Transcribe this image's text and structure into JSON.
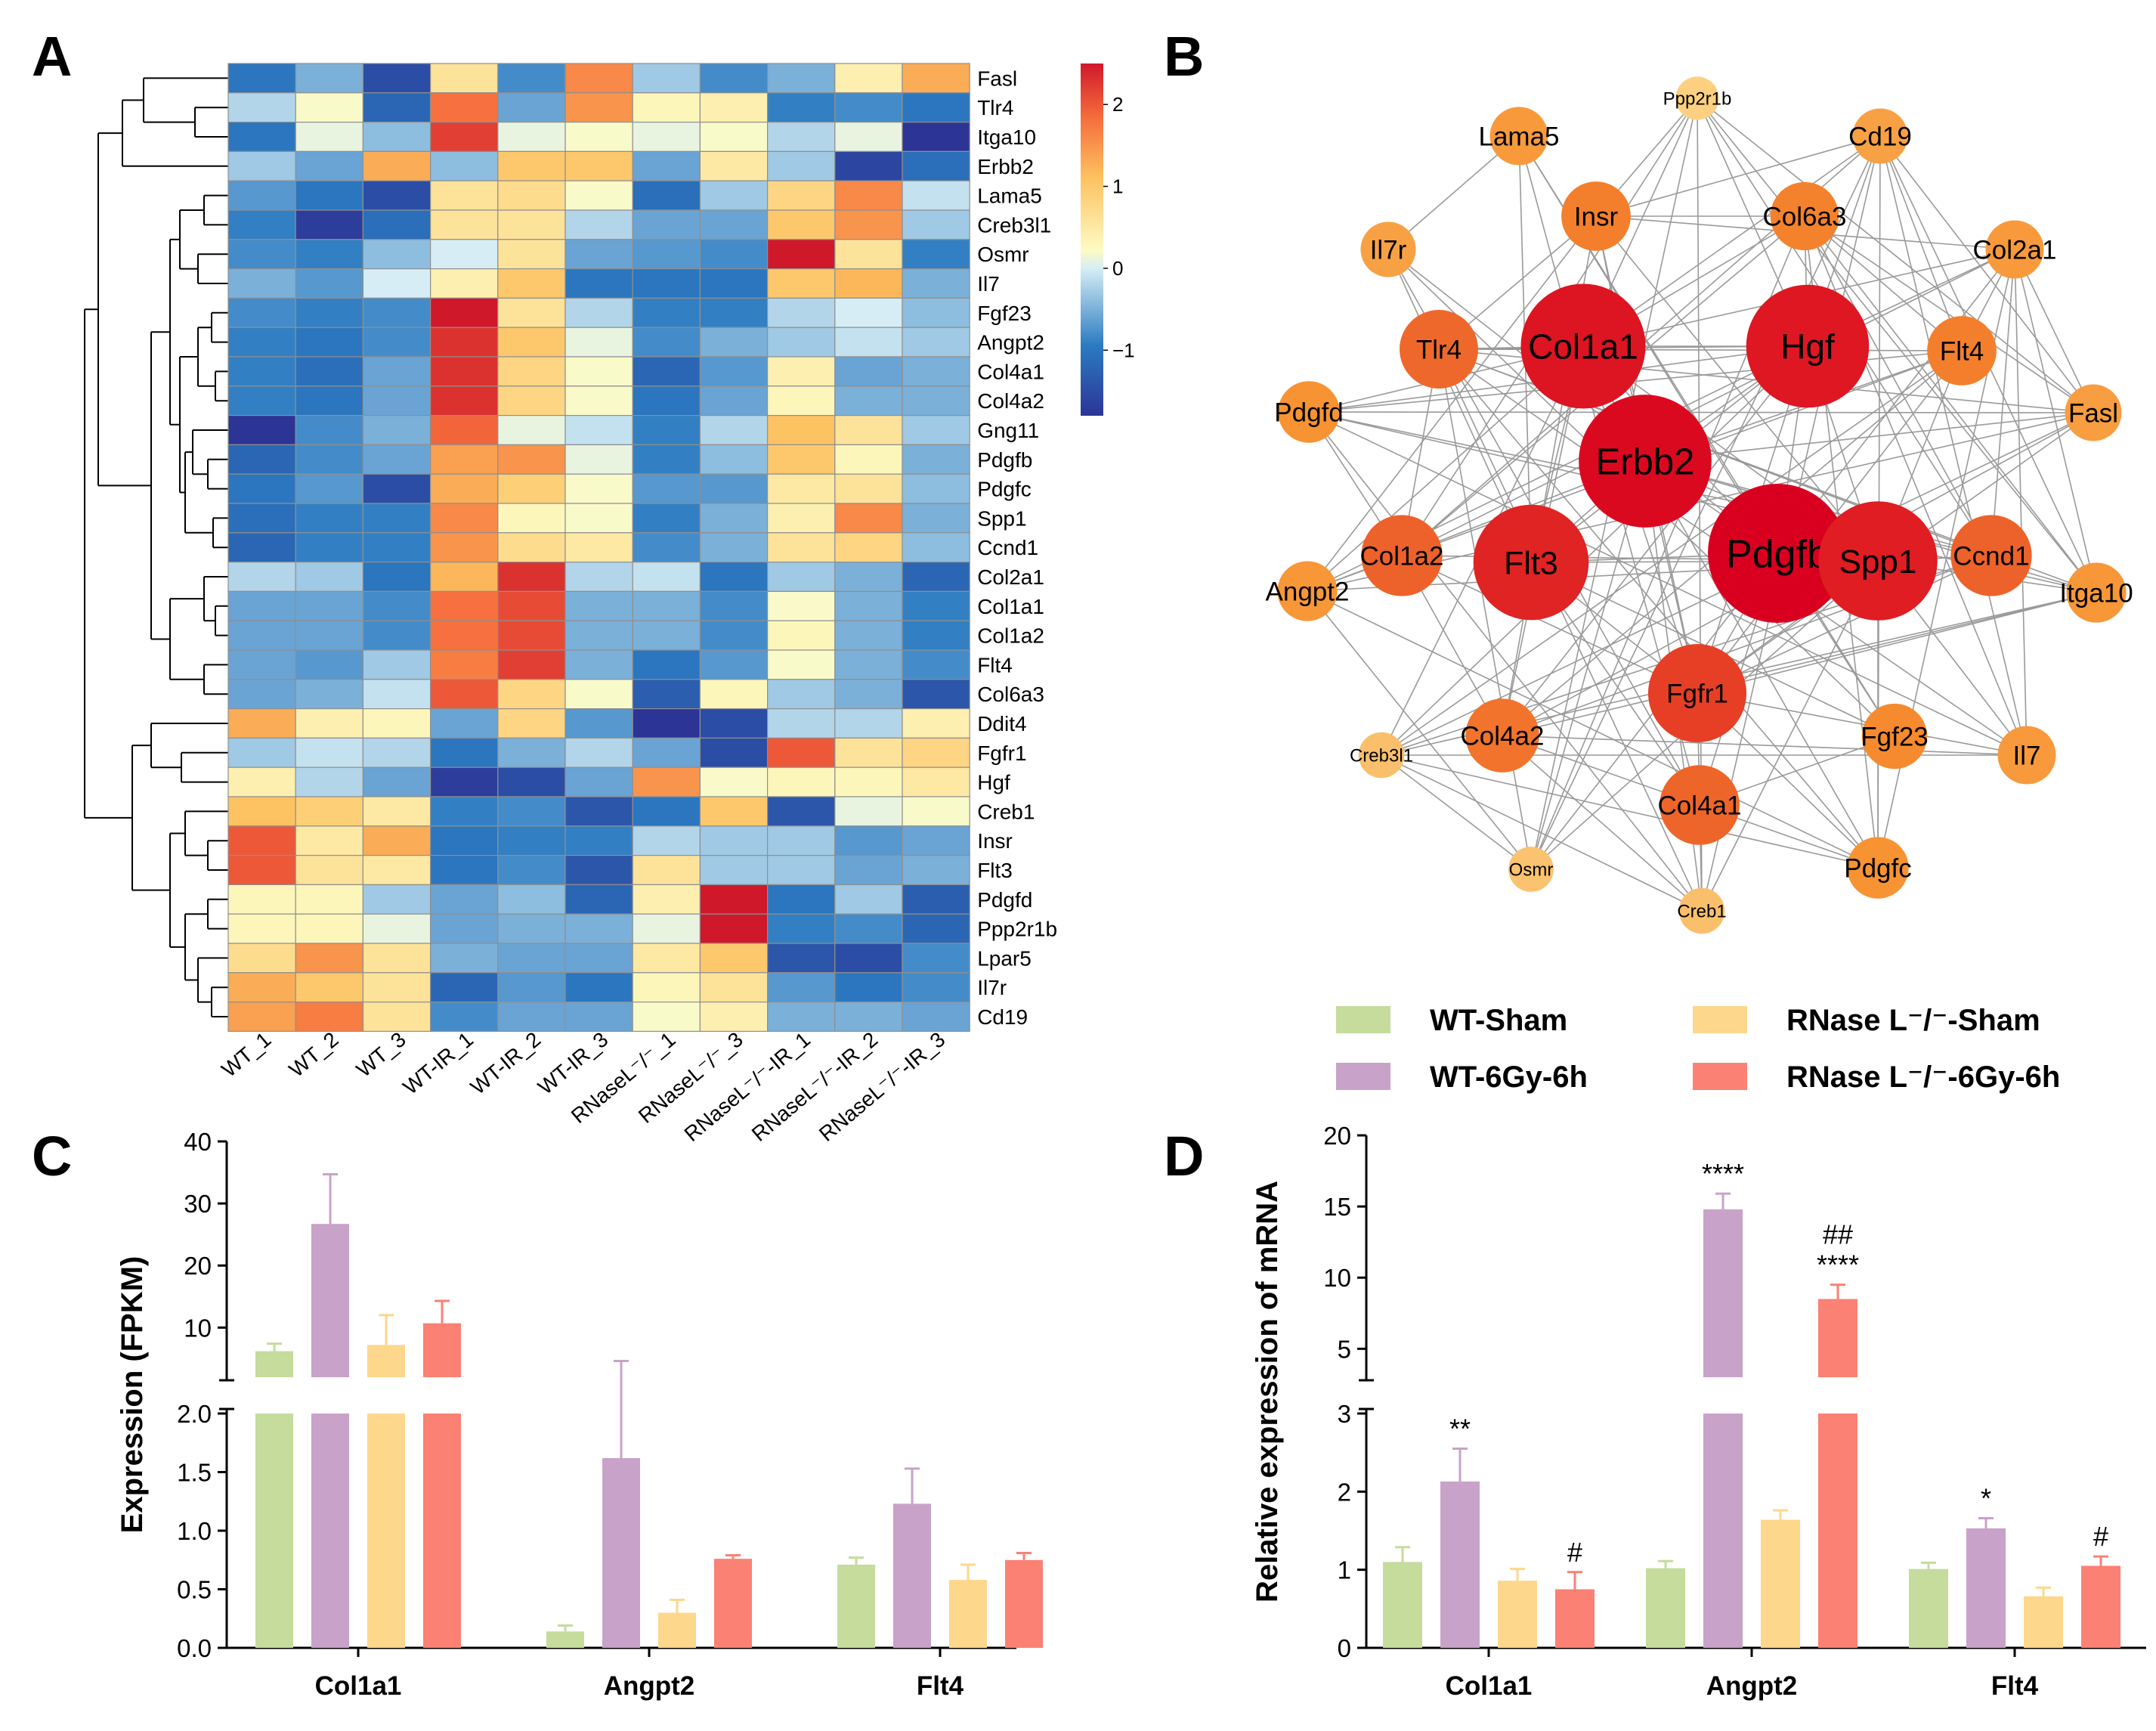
{
  "panels": {
    "A": "A",
    "B": "B",
    "C": "C",
    "D": "D"
  },
  "heatmap": {
    "genes": [
      "Fasl",
      "Tlr4",
      "Itga10",
      "Erbb2",
      "Lama5",
      "Creb3l1",
      "Osmr",
      "Il7",
      "Fgf23",
      "Angpt2",
      "Col4a1",
      "Col4a2",
      "Gng11",
      "Pdgfb",
      "Pdgfc",
      "Spp1",
      "Ccnd1",
      "Col2a1",
      "Col1a1",
      "Col1a2",
      "Flt4",
      "Col6a3",
      "Ddit4",
      "Fgfr1",
      "Hgf",
      "Creb1",
      "Insr",
      "Flt3",
      "Pdgfd",
      "Ppp2r1b",
      "Lpar5",
      "Il7r",
      "Cd19"
    ],
    "samples": [
      "WT_1",
      "WT_2",
      "WT_3",
      "WT-IR_1",
      "WT-IR_2",
      "WT-IR_3",
      "RNaseL⁻/⁻_1",
      "RNaseL⁻/⁻_3",
      "RNaseL⁻/⁻-IR_1",
      "RNaseL⁻/⁻-IR_2",
      "RNaseL⁻/⁻-IR_3"
    ],
    "values": [
      [
        -1.0,
        -0.5,
        -1.5,
        0.6,
        -0.8,
        1.6,
        -0.3,
        -0.8,
        -0.5,
        0.4,
        1.3
      ],
      [
        -0.2,
        0.2,
        -1.2,
        1.8,
        -0.6,
        1.5,
        0.3,
        0.4,
        -0.9,
        -0.8,
        -1.0
      ],
      [
        -1.0,
        0.1,
        -0.4,
        2.2,
        0.1,
        0.2,
        0.1,
        0.2,
        -0.2,
        0.1,
        -1.8
      ],
      [
        -0.3,
        -0.6,
        1.3,
        -0.4,
        1.0,
        1.0,
        -0.6,
        0.5,
        -0.3,
        -1.6,
        -1.1
      ],
      [
        -0.7,
        -1.0,
        -1.5,
        0.6,
        0.7,
        0.2,
        -1.1,
        -0.3,
        0.8,
        1.6,
        -0.1
      ],
      [
        -0.9,
        -1.7,
        -1.1,
        0.6,
        0.6,
        -0.2,
        -0.6,
        -0.6,
        1.0,
        1.5,
        -0.3
      ],
      [
        -0.8,
        -0.9,
        -0.4,
        0.0,
        0.6,
        -0.6,
        -0.7,
        -0.8,
        2.5,
        0.6,
        -0.9
      ],
      [
        -0.5,
        -0.7,
        0.0,
        0.4,
        1.0,
        -1.0,
        -1.0,
        -1.0,
        1.0,
        1.2,
        -0.5
      ],
      [
        -0.8,
        -0.9,
        -0.8,
        2.5,
        0.6,
        -0.2,
        -0.9,
        -0.9,
        -0.2,
        0.0,
        -0.4
      ],
      [
        -0.9,
        -1.0,
        -0.8,
        2.3,
        1.0,
        0.1,
        -0.8,
        -0.5,
        -0.3,
        -0.1,
        -0.3
      ],
      [
        -0.9,
        -1.1,
        -0.6,
        2.3,
        0.8,
        0.2,
        -1.2,
        -0.7,
        0.4,
        -0.6,
        -0.5
      ],
      [
        -0.9,
        -1.0,
        -0.6,
        2.3,
        0.8,
        0.2,
        -1.0,
        -0.6,
        0.3,
        -0.5,
        -0.5
      ],
      [
        -1.8,
        -0.8,
        -0.5,
        1.9,
        0.1,
        -0.1,
        -0.9,
        -0.2,
        1.1,
        0.6,
        -0.3
      ],
      [
        -1.2,
        -0.8,
        -0.6,
        1.4,
        1.5,
        0.1,
        -0.9,
        -0.4,
        1.0,
        0.3,
        -0.5
      ],
      [
        -1.0,
        -0.7,
        -1.5,
        1.3,
        0.9,
        0.2,
        -0.7,
        -0.7,
        0.5,
        0.6,
        -0.4
      ],
      [
        -1.1,
        -0.9,
        -0.9,
        1.6,
        0.3,
        0.2,
        -0.9,
        -0.5,
        0.4,
        1.6,
        -0.5
      ],
      [
        -1.2,
        -0.9,
        -0.9,
        1.5,
        0.7,
        0.5,
        -0.8,
        -0.5,
        0.6,
        0.8,
        -0.4
      ],
      [
        -0.2,
        -0.3,
        -1.0,
        1.2,
        2.3,
        -0.2,
        -0.1,
        -1.0,
        -0.3,
        -0.5,
        -1.2
      ],
      [
        -0.6,
        -0.6,
        -0.8,
        1.8,
        2.1,
        -0.5,
        -0.5,
        -0.8,
        0.2,
        -0.5,
        -0.9
      ],
      [
        -0.6,
        -0.6,
        -0.8,
        1.8,
        2.1,
        -0.5,
        -0.5,
        -0.8,
        0.3,
        -0.5,
        -0.9
      ],
      [
        -0.6,
        -0.7,
        -0.3,
        1.7,
        2.2,
        -0.5,
        -1.0,
        -0.7,
        0.2,
        -0.5,
        -0.8
      ],
      [
        -0.6,
        -0.5,
        -0.1,
        2.0,
        0.8,
        0.2,
        -1.3,
        0.3,
        -0.3,
        -0.5,
        -1.4
      ],
      [
        1.3,
        0.4,
        0.3,
        -0.6,
        0.8,
        -0.7,
        -1.9,
        -1.5,
        -0.2,
        -0.2,
        0.4
      ],
      [
        -0.3,
        -0.1,
        -0.2,
        -1.0,
        -0.5,
        -0.2,
        -0.6,
        -1.5,
        2.0,
        0.6,
        0.8
      ],
      [
        0.4,
        -0.2,
        -0.6,
        -1.7,
        -1.5,
        -0.6,
        1.5,
        0.2,
        0.3,
        0.3,
        0.5
      ],
      [
        1.1,
        0.9,
        0.5,
        -0.9,
        -0.8,
        -1.4,
        -1.0,
        1.0,
        -1.4,
        0.1,
        0.2
      ],
      [
        2.0,
        0.5,
        1.3,
        -1.0,
        -0.9,
        -0.9,
        -0.2,
        -0.3,
        -0.3,
        -0.7,
        -0.6
      ],
      [
        2.0,
        0.6,
        0.5,
        -1.0,
        -0.8,
        -1.4,
        0.6,
        -0.3,
        -0.3,
        -0.6,
        -0.5
      ],
      [
        0.3,
        0.3,
        -0.3,
        -0.6,
        -0.4,
        -1.2,
        0.4,
        2.5,
        -1.0,
        -0.3,
        -1.3
      ],
      [
        0.3,
        0.3,
        0.1,
        -0.6,
        -0.5,
        -0.5,
        0.1,
        2.5,
        -0.9,
        -0.8,
        -1.2
      ],
      [
        0.7,
        1.5,
        0.6,
        -0.5,
        -0.6,
        -0.6,
        0.5,
        1.0,
        -1.4,
        -1.5,
        -0.8
      ],
      [
        1.3,
        1.0,
        0.6,
        -1.2,
        -0.7,
        -1.0,
        0.3,
        0.6,
        -0.7,
        -1.0,
        -0.8
      ],
      [
        1.4,
        1.7,
        0.6,
        -0.8,
        -0.6,
        -0.6,
        0.2,
        0.4,
        -0.5,
        -0.5,
        -0.6
      ]
    ],
    "colorbar": {
      "min": -1.8,
      "max": 2.5,
      "ticks": [
        2,
        1,
        0,
        -1
      ],
      "tick_labels": [
        "2",
        "1",
        "0",
        "−1"
      ]
    }
  },
  "network": {
    "nodes": [
      {
        "label": "Pdgfb",
        "score": 1.0
      },
      {
        "label": "Erbb2",
        "score": 0.97
      },
      {
        "label": "Col1a1",
        "score": 0.93
      },
      {
        "label": "Hgf",
        "score": 0.92
      },
      {
        "label": "Spp1",
        "score": 0.9
      },
      {
        "label": "Flt3",
        "score": 0.88
      },
      {
        "label": "Fgfr1",
        "score": 0.78
      },
      {
        "label": "Ccnd1",
        "score": 0.66
      },
      {
        "label": "Col1a2",
        "score": 0.66
      },
      {
        "label": "Tlr4",
        "score": 0.64
      },
      {
        "label": "Col4a1",
        "score": 0.65
      },
      {
        "label": "Col4a2",
        "score": 0.6
      },
      {
        "label": "Flt4",
        "score": 0.56
      },
      {
        "label": "Insr",
        "score": 0.56
      },
      {
        "label": "Col6a3",
        "score": 0.55
      },
      {
        "label": "Fgf23",
        "score": 0.52
      },
      {
        "label": "Pdgfd",
        "score": 0.48
      },
      {
        "label": "Pdgfc",
        "score": 0.48
      },
      {
        "label": "Itga10",
        "score": 0.46
      },
      {
        "label": "Angpt2",
        "score": 0.46
      },
      {
        "label": "Lama5",
        "score": 0.44
      },
      {
        "label": "Col2a1",
        "score": 0.44
      },
      {
        "label": "Il7",
        "score": 0.44
      },
      {
        "label": "Fasl",
        "score": 0.42
      },
      {
        "label": "Cd19",
        "score": 0.4
      },
      {
        "label": "Il7r",
        "score": 0.4
      },
      {
        "label": "Creb3l1",
        "score": 0.22
      },
      {
        "label": "Osmr",
        "score": 0.2
      },
      {
        "label": "Creb1",
        "score": 0.22
      },
      {
        "label": "Ppp2r1b",
        "score": 0.12
      }
    ],
    "color_scale": {
      "low": "#fde49a",
      "mid": "#f7902f",
      "high": "#d9001f"
    }
  },
  "legend": {
    "items": [
      {
        "label": "WT-Sham",
        "color": "#c5dc9d"
      },
      {
        "label": "RNase L⁻/⁻-Sham",
        "color": "#fdd78c"
      },
      {
        "label": "WT-6Gy-6h",
        "color": "#c8a2c9"
      },
      {
        "label": "RNase L⁻/⁻-6Gy-6h",
        "color": "#fa8174"
      }
    ]
  },
  "chart_data": [
    {
      "type": "bar",
      "panel": "C",
      "categories": [
        "Col1a1",
        "Angpt2",
        "Flt4"
      ],
      "ylabel": "Expression (FPKM)",
      "xlabel": "",
      "broken_axis": {
        "lower": [
          0,
          2
        ],
        "upper": [
          2,
          40
        ]
      },
      "lower_ticks": [
        "0.0",
        "0.5",
        "1.0",
        "1.5",
        "2.0"
      ],
      "upper_ticks": [
        "10",
        "20",
        "30",
        "40"
      ],
      "series": [
        {
          "name": "WT-Sham",
          "values": [
            6.2,
            0.14,
            0.71
          ],
          "errors": [
            1.2,
            0.05,
            0.06
          ]
        },
        {
          "name": "WT-6Gy-6h",
          "values": [
            26.7,
            1.62,
            1.23
          ],
          "errors": [
            8.0,
            3.0,
            0.3
          ]
        },
        {
          "name": "RNase L⁻/⁻-Sham",
          "values": [
            7.2,
            0.3,
            0.58
          ],
          "errors": [
            4.8,
            0.11,
            0.13
          ]
        },
        {
          "name": "RNase L⁻/⁻-6Gy-6h",
          "values": [
            10.7,
            0.76,
            0.75
          ],
          "errors": [
            3.6,
            0.03,
            0.06
          ]
        }
      ]
    },
    {
      "type": "bar",
      "panel": "D",
      "categories": [
        "Col1a1",
        "Angpt2",
        "Flt4"
      ],
      "ylabel": "Relative expression of mRNA",
      "xlabel": "",
      "broken_axis": {
        "lower": [
          0,
          3
        ],
        "upper": [
          3,
          20
        ]
      },
      "lower_ticks": [
        "0",
        "1",
        "2",
        "3"
      ],
      "upper_ticks": [
        "5",
        "10",
        "15",
        "20"
      ],
      "series": [
        {
          "name": "WT-Sham",
          "values": [
            1.1,
            1.02,
            1.01
          ],
          "errors": [
            0.19,
            0.09,
            0.08
          ],
          "labels": [
            "",
            "",
            ""
          ]
        },
        {
          "name": "WT-6Gy-6h",
          "values": [
            2.13,
            14.8,
            1.53
          ],
          "errors": [
            0.42,
            1.1,
            0.13
          ],
          "labels": [
            "**",
            "****",
            "*"
          ]
        },
        {
          "name": "RNase L⁻/⁻-Sham",
          "values": [
            0.86,
            1.64,
            0.66
          ],
          "errors": [
            0.15,
            0.12,
            0.11
          ],
          "labels": [
            "",
            "",
            ""
          ]
        },
        {
          "name": "RNase L⁻/⁻-6Gy-6h",
          "values": [
            0.75,
            8.5,
            1.05
          ],
          "errors": [
            0.22,
            1.0,
            0.12
          ],
          "labels": [
            "#",
            "##\n****",
            "#"
          ]
        }
      ]
    }
  ]
}
